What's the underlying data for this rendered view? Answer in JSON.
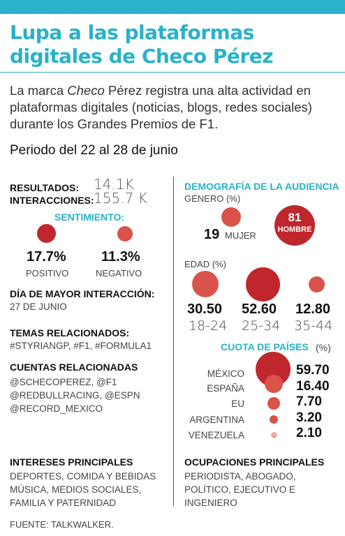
{
  "title": "Lupa a las plataformas digitales de Checo Pérez",
  "intro": {
    "before": "La marca ",
    "brand": "Checo",
    "after": " Pérez registra una alta actividad en plataformas digitales (noticias, blogs, redes sociales) durante los Grandes Premios de F1."
  },
  "period": "Periodo del 22 al 28 de junio",
  "resultados": {
    "label": "RESULTADOS:",
    "value": "14.1K"
  },
  "interacciones": {
    "label": "INTERACCIONES:",
    "value": "155.7 K"
  },
  "sentimiento": {
    "heading": "SENTIMIENTO:",
    "positivo": {
      "value": "17.7%",
      "label": "POSITIVO"
    },
    "negativo": {
      "value": "11.3%",
      "label": "NEGATIVO"
    }
  },
  "dia": {
    "label": "DÍA DE MAYOR INTERACCIÓN:",
    "value": "27 DE JUNIO"
  },
  "temas": {
    "label": "TEMAS RELACIONADOS:",
    "value": "#STYRIANGP, #F1, #FORMULA1"
  },
  "cuentas": {
    "label": "CUENTAS RELACIONADAS",
    "lines": [
      "@SCHECOPEREZ, @F1",
      "@REDBULLRACING, @ESPN",
      "@RECORD_MEXICO"
    ]
  },
  "intereses": {
    "label": "INTERESES PRINCIPALES",
    "lines": [
      "DEPORTES, COMIDA Y BEBIDAS",
      "MÚSICA, MEDIOS SOCIALES,",
      "FAMILIA Y PATERNIDAD"
    ]
  },
  "demografia": {
    "heading": "DEMOGRAFÍA DE LA AUDIENCIA",
    "genero_label": "GÉNERO (%)",
    "mujer": {
      "value": "19",
      "label": "MUJER"
    },
    "hombre": {
      "value": "81",
      "label": "HOMBRE"
    },
    "edad_label": "EDAD (%)",
    "edad": [
      {
        "value": "30.50",
        "label": "18-24"
      },
      {
        "value": "52.60",
        "label": "25-34"
      },
      {
        "value": "12.80",
        "label": "35-44"
      }
    ]
  },
  "paises": {
    "heading": "CUOTA DE PAÍSES",
    "unit": "(%)",
    "items": [
      {
        "name": "MÉXICO",
        "value": "59.70"
      },
      {
        "name": "ESPAÑA",
        "value": "16.40"
      },
      {
        "name": "EU",
        "value": "7.70"
      },
      {
        "name": "ARGENTINA",
        "value": "3.20"
      },
      {
        "name": "VENEZUELA",
        "value": "2.10"
      }
    ]
  },
  "ocupaciones": {
    "label": "OCUPACIONES PRINCIPALES",
    "lines": [
      "PERIODISTA, ABOGADO,",
      "POLÍTICO, EJECUTIVO E",
      "INGENIERO"
    ]
  },
  "fuente": "FUENTE: TALKWALKER.",
  "colors": {
    "accent": "#29b2c9",
    "circle_dark": "#c0272d",
    "circle_light": "#d9534a"
  }
}
